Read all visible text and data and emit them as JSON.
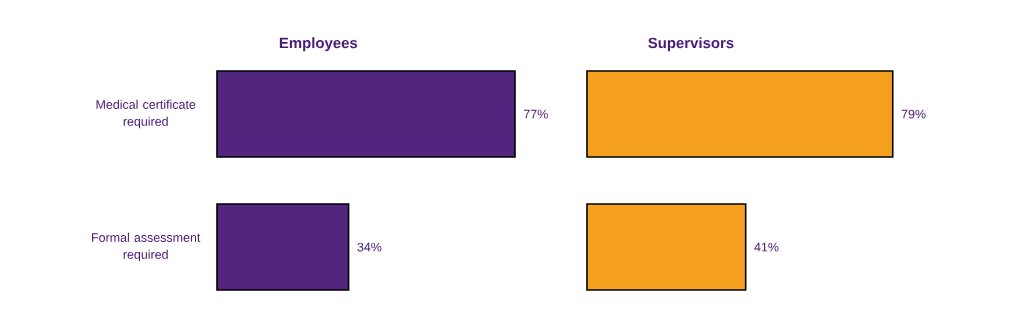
{
  "chart_data": [
    {
      "type": "bar",
      "orientation": "horizontal",
      "title": "Employees",
      "categories": [
        "Medical certificate required",
        "Formal assessment required"
      ],
      "values": [
        77,
        34
      ],
      "value_labels": [
        "77%",
        "34%"
      ],
      "color": "#52267f",
      "tick_labels": "y"
    },
    {
      "type": "bar",
      "orientation": "horizontal",
      "title": "Supervisors",
      "categories": [
        null,
        null
      ],
      "values": [
        79,
        41
      ],
      "value_labels": [
        "79%",
        "41%"
      ],
      "color": "#f5a01f"
    }
  ]
}
